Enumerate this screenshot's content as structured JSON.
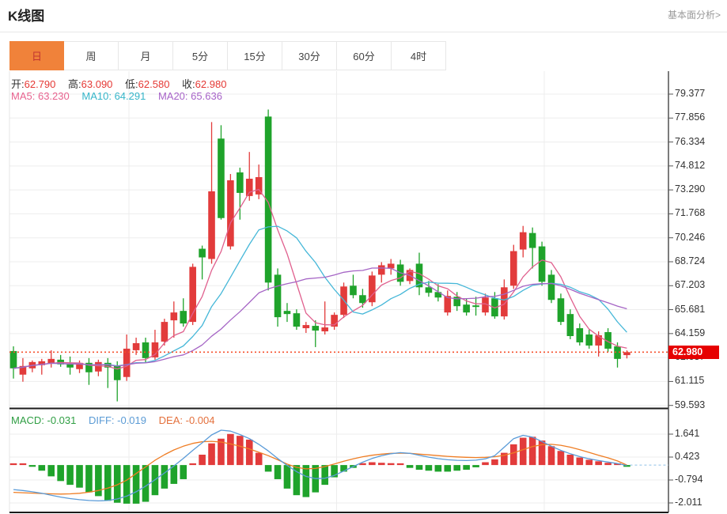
{
  "header": {
    "title": "K线图",
    "link": "基本面分析>"
  },
  "tabs": {
    "items": [
      "日",
      "周",
      "月",
      "5分",
      "15分",
      "30分",
      "60分",
      "4时"
    ],
    "active_index": 0
  },
  "quote": {
    "open_label": "开:",
    "open": "62.790",
    "high_label": "高:",
    "high": "63.090",
    "low_label": "低:",
    "low": "62.580",
    "close_label": "收:",
    "close": "62.980"
  },
  "ma_header": {
    "ma5_label": "MA5:",
    "ma5": "63.230",
    "ma10_label": "MA10:",
    "ma10": "64.291",
    "ma20_label": "MA20:",
    "ma20": "65.636"
  },
  "macd_header": {
    "macd_label": "MACD:",
    "macd": "-0.031",
    "diff_label": "DIFF:",
    "diff": "-0.019",
    "dea_label": "DEA:",
    "dea": "-0.004"
  },
  "price_tag": "62.980",
  "colors": {
    "up": "#e23b3b",
    "down": "#1fa32b",
    "ma5": "#e0608e",
    "ma10": "#45b7d8",
    "ma20": "#a565c5",
    "diff": "#5a9bd8",
    "dea": "#ef7d24",
    "grid": "#ededed",
    "axis": "#444",
    "panel_border": "#1a1a1a",
    "dotted_price": "#f5502c",
    "tag_bg": "#e60000",
    "tab_active_bg": "#f0823a",
    "tab_active_text": "#c23531"
  },
  "chart_data": {
    "type": "candlestick+macd",
    "main": {
      "title": "K线图 daily candles",
      "ylim": [
        59.593,
        79.377
      ],
      "y_ticks": [
        "79.377",
        "77.856",
        "76.334",
        "74.812",
        "73.290",
        "71.768",
        "70.246",
        "68.724",
        "67.203",
        "65.681",
        "64.159",
        "62.637",
        "61.115",
        "59.593"
      ],
      "current_price": 62.98,
      "ma_periods": [
        5,
        10,
        20
      ],
      "candles_ohlc": [
        [
          63.05,
          63.35,
          61.3,
          61.95
        ],
        [
          61.55,
          62.6,
          61.1,
          62.1
        ],
        [
          61.95,
          62.45,
          61.7,
          62.35
        ],
        [
          62.15,
          62.55,
          61.55,
          62.4
        ],
        [
          62.25,
          63.1,
          62.0,
          62.55
        ],
        [
          62.5,
          62.8,
          62.05,
          62.2
        ],
        [
          62.25,
          62.7,
          61.55,
          62.0
        ],
        [
          61.9,
          62.45,
          61.65,
          62.3
        ],
        [
          62.3,
          62.6,
          60.9,
          61.7
        ],
        [
          61.75,
          62.5,
          61.45,
          62.35
        ],
        [
          62.3,
          62.6,
          60.7,
          62.0
        ],
        [
          62.1,
          62.4,
          59.85,
          61.2
        ],
        [
          61.4,
          64.1,
          61.15,
          63.2
        ],
        [
          63.1,
          63.9,
          62.8,
          63.55
        ],
        [
          63.6,
          63.9,
          62.3,
          62.6
        ],
        [
          62.65,
          64.4,
          62.5,
          63.6
        ],
        [
          63.65,
          65.1,
          63.4,
          64.9
        ],
        [
          65.0,
          66.2,
          63.9,
          65.5
        ],
        [
          65.6,
          66.4,
          64.6,
          64.8
        ],
        [
          64.9,
          68.6,
          64.7,
          68.4
        ],
        [
          69.55,
          69.75,
          67.6,
          69.0
        ],
        [
          68.9,
          77.6,
          68.6,
          73.2
        ],
        [
          76.55,
          77.4,
          71.4,
          71.5
        ],
        [
          69.7,
          74.3,
          69.5,
          73.9
        ],
        [
          74.4,
          74.7,
          71.4,
          73.1
        ],
        [
          72.9,
          75.7,
          72.6,
          74.0
        ],
        [
          73.0,
          74.9,
          72.7,
          74.1
        ],
        [
          77.95,
          78.4,
          66.9,
          67.4
        ],
        [
          67.9,
          68.3,
          64.6,
          65.2
        ],
        [
          65.6,
          66.1,
          64.9,
          65.4
        ],
        [
          65.45,
          65.7,
          64.4,
          64.6
        ],
        [
          64.5,
          64.9,
          64.2,
          64.7
        ],
        [
          64.65,
          65.0,
          63.3,
          64.35
        ],
        [
          64.3,
          66.2,
          64.1,
          64.55
        ],
        [
          64.6,
          65.5,
          64.4,
          65.35
        ],
        [
          65.35,
          67.4,
          65.15,
          67.15
        ],
        [
          67.2,
          67.9,
          66.4,
          66.6
        ],
        [
          66.6,
          67.0,
          65.8,
          66.1
        ],
        [
          66.15,
          68.1,
          65.9,
          67.85
        ],
        [
          67.9,
          68.7,
          67.4,
          68.5
        ],
        [
          68.3,
          68.9,
          67.9,
          68.6
        ],
        [
          68.55,
          68.85,
          67.2,
          67.45
        ],
        [
          67.5,
          68.3,
          67.3,
          68.2
        ],
        [
          68.6,
          69.3,
          66.6,
          67.1
        ],
        [
          67.1,
          67.5,
          66.5,
          66.75
        ],
        [
          66.8,
          67.3,
          66.2,
          66.45
        ],
        [
          65.5,
          66.9,
          65.3,
          66.55
        ],
        [
          66.5,
          66.8,
          65.6,
          65.9
        ],
        [
          66.0,
          66.4,
          65.3,
          65.5
        ],
        [
          65.95,
          66.5,
          65.3,
          65.85
        ],
        [
          65.5,
          66.7,
          65.3,
          66.45
        ],
        [
          66.4,
          66.8,
          65.1,
          65.25
        ],
        [
          65.25,
          67.6,
          65.05,
          67.1
        ],
        [
          67.2,
          69.8,
          67.0,
          69.4
        ],
        [
          69.5,
          71.0,
          69.0,
          70.6
        ],
        [
          70.55,
          70.9,
          68.3,
          69.6
        ],
        [
          69.7,
          70.0,
          67.2,
          67.45
        ],
        [
          67.9,
          68.2,
          66.1,
          66.3
        ],
        [
          66.4,
          66.7,
          64.7,
          64.9
        ],
        [
          65.4,
          65.7,
          63.8,
          64.0
        ],
        [
          64.5,
          64.8,
          63.4,
          63.6
        ],
        [
          64.1,
          64.4,
          63.2,
          63.4
        ],
        [
          63.4,
          64.3,
          62.7,
          64.05
        ],
        [
          64.25,
          64.5,
          63.0,
          63.2
        ],
        [
          63.35,
          63.6,
          62.0,
          62.55
        ],
        [
          62.79,
          63.09,
          62.58,
          62.98
        ]
      ]
    },
    "macd": {
      "ylim": [
        -2.011,
        1.641
      ],
      "y_ticks": [
        "1.641",
        "0.423",
        "-0.794",
        "-2.011"
      ],
      "histogram": [
        0.08,
        0.05,
        -0.04,
        -0.3,
        -0.6,
        -0.85,
        -1.05,
        -1.2,
        -1.45,
        -1.65,
        -1.9,
        -2.0,
        -2.05,
        -2.05,
        -1.95,
        -1.6,
        -1.25,
        -1.0,
        -0.75,
        0.05,
        0.55,
        1.15,
        1.4,
        1.65,
        1.55,
        1.35,
        0.65,
        -0.35,
        -0.75,
        -1.25,
        -1.6,
        -1.7,
        -1.45,
        -1.05,
        -0.65,
        -0.35,
        -0.15,
        0.1,
        0.15,
        0.12,
        0.1,
        0.06,
        -0.15,
        -0.25,
        -0.3,
        -0.35,
        -0.35,
        -0.3,
        -0.25,
        -0.12,
        0.15,
        0.3,
        0.65,
        1.1,
        1.45,
        1.5,
        1.3,
        1.0,
        0.75,
        0.55,
        0.4,
        0.28,
        0.2,
        0.12,
        0.06,
        -0.03
      ],
      "diff": [
        -1.3,
        -1.35,
        -1.42,
        -1.5,
        -1.6,
        -1.7,
        -1.78,
        -1.84,
        -1.88,
        -1.9,
        -1.88,
        -1.8,
        -1.65,
        -1.42,
        -1.12,
        -0.78,
        -0.42,
        -0.05,
        0.35,
        0.78,
        1.18,
        1.6,
        1.85,
        1.8,
        1.62,
        1.4,
        1.1,
        0.75,
        0.35,
        -0.02,
        -0.35,
        -0.6,
        -0.72,
        -0.7,
        -0.55,
        -0.32,
        -0.08,
        0.15,
        0.35,
        0.5,
        0.6,
        0.66,
        0.62,
        0.52,
        0.42,
        0.34,
        0.28,
        0.25,
        0.24,
        0.26,
        0.33,
        0.5,
        0.95,
        1.4,
        1.58,
        1.48,
        1.25,
        1.0,
        0.78,
        0.6,
        0.45,
        0.33,
        0.24,
        0.16,
        0.08,
        -0.02
      ],
      "dea": [
        -1.45,
        -1.47,
        -1.49,
        -1.51,
        -1.53,
        -1.54,
        -1.53,
        -1.5,
        -1.44,
        -1.35,
        -1.22,
        -1.05,
        -0.8,
        -0.45,
        -0.1,
        0.25,
        0.55,
        0.8,
        1.0,
        1.15,
        1.24,
        1.26,
        1.22,
        1.12,
        1.0,
        0.85,
        0.68,
        0.5,
        0.28,
        0.05,
        -0.12,
        -0.2,
        -0.18,
        -0.08,
        0.06,
        0.2,
        0.33,
        0.44,
        0.52,
        0.58,
        0.62,
        0.63,
        0.62,
        0.58,
        0.54,
        0.5,
        0.46,
        0.43,
        0.41,
        0.4,
        0.41,
        0.44,
        0.52,
        0.65,
        0.82,
        0.98,
        1.08,
        1.1,
        1.05,
        0.95,
        0.82,
        0.67,
        0.52,
        0.38,
        0.22,
        0.0
      ]
    }
  }
}
